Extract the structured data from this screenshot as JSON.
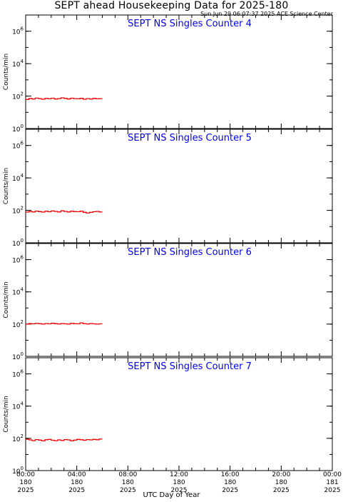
{
  "title": "SEPT ahead Housekeeping Data for 2025-180",
  "timestamp": "Sun Jun 29 06:07:37 2025 ACE Science Center",
  "x_axis_title": "UTC Day of Year",
  "colors": {
    "panel_title": "#0000ee",
    "trace": "#ee0000",
    "axis": "#000000"
  },
  "chart_data": [
    {
      "type": "line",
      "title": "SEPT NS Singles Counter 4",
      "ylabel": "Counts/min",
      "yscale": "log",
      "ylim": [
        1,
        10000000
      ],
      "y_ticks": [
        {
          "base": "10",
          "exp": "0"
        },
        {
          "base": "10",
          "exp": "2"
        },
        {
          "base": "10",
          "exp": "4"
        },
        {
          "base": "10",
          "exp": "6"
        }
      ],
      "xlim": [
        0,
        24
      ],
      "x": [
        0.0,
        0.25,
        0.5,
        0.75,
        1.0,
        1.25,
        1.5,
        1.75,
        2.0,
        2.25,
        2.5,
        2.75,
        3.0,
        3.25,
        3.5,
        3.75,
        4.0,
        4.25,
        4.5,
        4.75,
        5.0,
        5.25,
        5.5,
        5.75,
        6.0
      ],
      "values": [
        62,
        72,
        66,
        75,
        70,
        64,
        72,
        68,
        74,
        66,
        70,
        78,
        72,
        66,
        74,
        70,
        68,
        73,
        64,
        70,
        66,
        72,
        68,
        70,
        70
      ]
    },
    {
      "type": "line",
      "title": "SEPT NS Singles Counter 5",
      "ylabel": "Counts/min",
      "yscale": "log",
      "ylim": [
        1,
        10000000
      ],
      "y_ticks": [
        {
          "base": "10",
          "exp": "0"
        },
        {
          "base": "10",
          "exp": "2"
        },
        {
          "base": "10",
          "exp": "4"
        },
        {
          "base": "10",
          "exp": "6"
        }
      ],
      "xlim": [
        0,
        24
      ],
      "x": [
        0.0,
        0.25,
        0.5,
        0.75,
        1.0,
        1.25,
        1.5,
        1.75,
        2.0,
        2.25,
        2.5,
        2.75,
        3.0,
        3.25,
        3.5,
        3.75,
        4.0,
        4.25,
        4.5,
        4.75,
        5.0,
        5.25,
        5.5,
        5.75,
        6.0
      ],
      "values": [
        78,
        85,
        80,
        90,
        84,
        78,
        88,
        82,
        92,
        86,
        80,
        94,
        86,
        80,
        88,
        84,
        82,
        88,
        76,
        68,
        76,
        82,
        86,
        80,
        82
      ]
    },
    {
      "type": "line",
      "title": "SEPT NS Singles Counter 6",
      "ylabel": "Counts/min",
      "yscale": "log",
      "ylim": [
        1,
        10000000
      ],
      "y_ticks": [
        {
          "base": "10",
          "exp": "0"
        },
        {
          "base": "10",
          "exp": "2"
        },
        {
          "base": "10",
          "exp": "4"
        },
        {
          "base": "10",
          "exp": "6"
        }
      ],
      "xlim": [
        0,
        24
      ],
      "x": [
        0.0,
        0.25,
        0.5,
        0.75,
        1.0,
        1.25,
        1.5,
        1.75,
        2.0,
        2.25,
        2.5,
        2.75,
        3.0,
        3.25,
        3.5,
        3.75,
        4.0,
        4.25,
        4.5,
        4.75,
        5.0,
        5.25,
        5.5,
        5.75,
        6.0
      ],
      "values": [
        100,
        108,
        104,
        110,
        106,
        100,
        108,
        104,
        112,
        106,
        102,
        108,
        104,
        100,
        110,
        106,
        104,
        120,
        106,
        102,
        108,
        104,
        100,
        104,
        104
      ]
    },
    {
      "type": "line",
      "title": "SEPT NS Singles Counter 7",
      "ylabel": "Counts/min",
      "yscale": "log",
      "ylim": [
        1,
        10000000
      ],
      "y_ticks": [
        {
          "base": "10",
          "exp": "0"
        },
        {
          "base": "10",
          "exp": "2"
        },
        {
          "base": "10",
          "exp": "4"
        },
        {
          "base": "10",
          "exp": "6"
        }
      ],
      "xlim": [
        0,
        24
      ],
      "x": [
        0.0,
        0.25,
        0.5,
        0.75,
        1.0,
        1.25,
        1.5,
        1.75,
        2.0,
        2.25,
        2.5,
        2.75,
        3.0,
        3.25,
        3.5,
        3.75,
        4.0,
        4.25,
        4.5,
        4.75,
        5.0,
        5.25,
        5.5,
        5.75,
        6.0
      ],
      "values": [
        88,
        80,
        72,
        84,
        78,
        70,
        82,
        86,
        76,
        72,
        80,
        74,
        84,
        80,
        70,
        78,
        86,
        82,
        76,
        84,
        80,
        86,
        82,
        90,
        86
      ]
    }
  ],
  "x_ticks": [
    {
      "hour": 0,
      "time": "00:00",
      "doy": "180",
      "year": "2025"
    },
    {
      "hour": 4,
      "time": "04:00",
      "doy": "180",
      "year": "2025"
    },
    {
      "hour": 8,
      "time": "08:00",
      "doy": "180",
      "year": "2025"
    },
    {
      "hour": 12,
      "time": "12:00",
      "doy": "180",
      "year": "2025"
    },
    {
      "hour": 16,
      "time": "16:00",
      "doy": "180",
      "year": "2025"
    },
    {
      "hour": 20,
      "time": "20:00",
      "doy": "180",
      "year": "2025"
    },
    {
      "hour": 24,
      "time": "00:00",
      "doy": "181",
      "year": "2025"
    }
  ]
}
